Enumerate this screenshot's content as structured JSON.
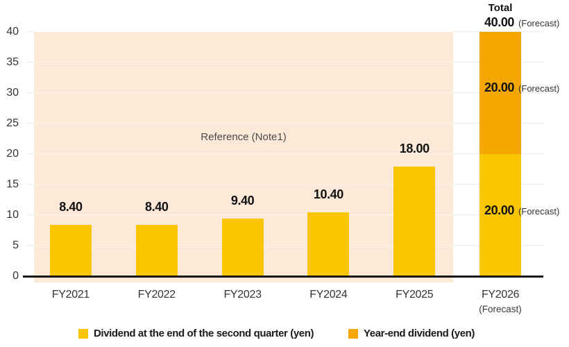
{
  "chart_data": {
    "type": "bar",
    "stacked": true,
    "grid": "horizontal",
    "legend_position": "bottom",
    "ylim": [
      0,
      40
    ],
    "yticks": [
      0,
      5,
      10,
      15,
      20,
      25,
      30,
      35,
      40
    ],
    "categories": [
      {
        "label": "FY2021",
        "sub": ""
      },
      {
        "label": "FY2022",
        "sub": ""
      },
      {
        "label": "FY2023",
        "sub": ""
      },
      {
        "label": "FY2024",
        "sub": ""
      },
      {
        "label": "FY2025",
        "sub": ""
      },
      {
        "label": "FY2026",
        "sub": "(Forecast)"
      }
    ],
    "series": [
      {
        "name": "Dividend at the end of the second quarter (yen)",
        "color": "#FBC600",
        "values": [
          8.4,
          8.4,
          9.4,
          10.4,
          18.0,
          20.0
        ]
      },
      {
        "name": "Year-end dividend (yen)",
        "color": "#F5A700",
        "values": [
          0,
          0,
          0,
          0,
          0,
          20.0
        ]
      }
    ],
    "value_labels": [
      "8.40",
      "8.40",
      "9.40",
      "10.40",
      "18.00",
      ""
    ],
    "annotations": {
      "reference_band_label": "Reference (Note1)",
      "total_title": "Total",
      "total_value": "40.00",
      "year_end_forecast_value": "20.00",
      "q2_forecast_value": "20.00",
      "forecast_suffix": "(Forecast)"
    }
  },
  "legend": [
    {
      "label": "Dividend at the end of the second quarter (yen)",
      "color": "#FBC600"
    },
    {
      "label": "Year-end dividend (yen)",
      "color": "#F5A700"
    }
  ],
  "colors": {
    "bar_yellow": "#FBC600",
    "bar_orange": "#F5A700",
    "reference_band": "#FCE9D8",
    "gridline": "#E9E9E9",
    "axis": "#141414"
  }
}
